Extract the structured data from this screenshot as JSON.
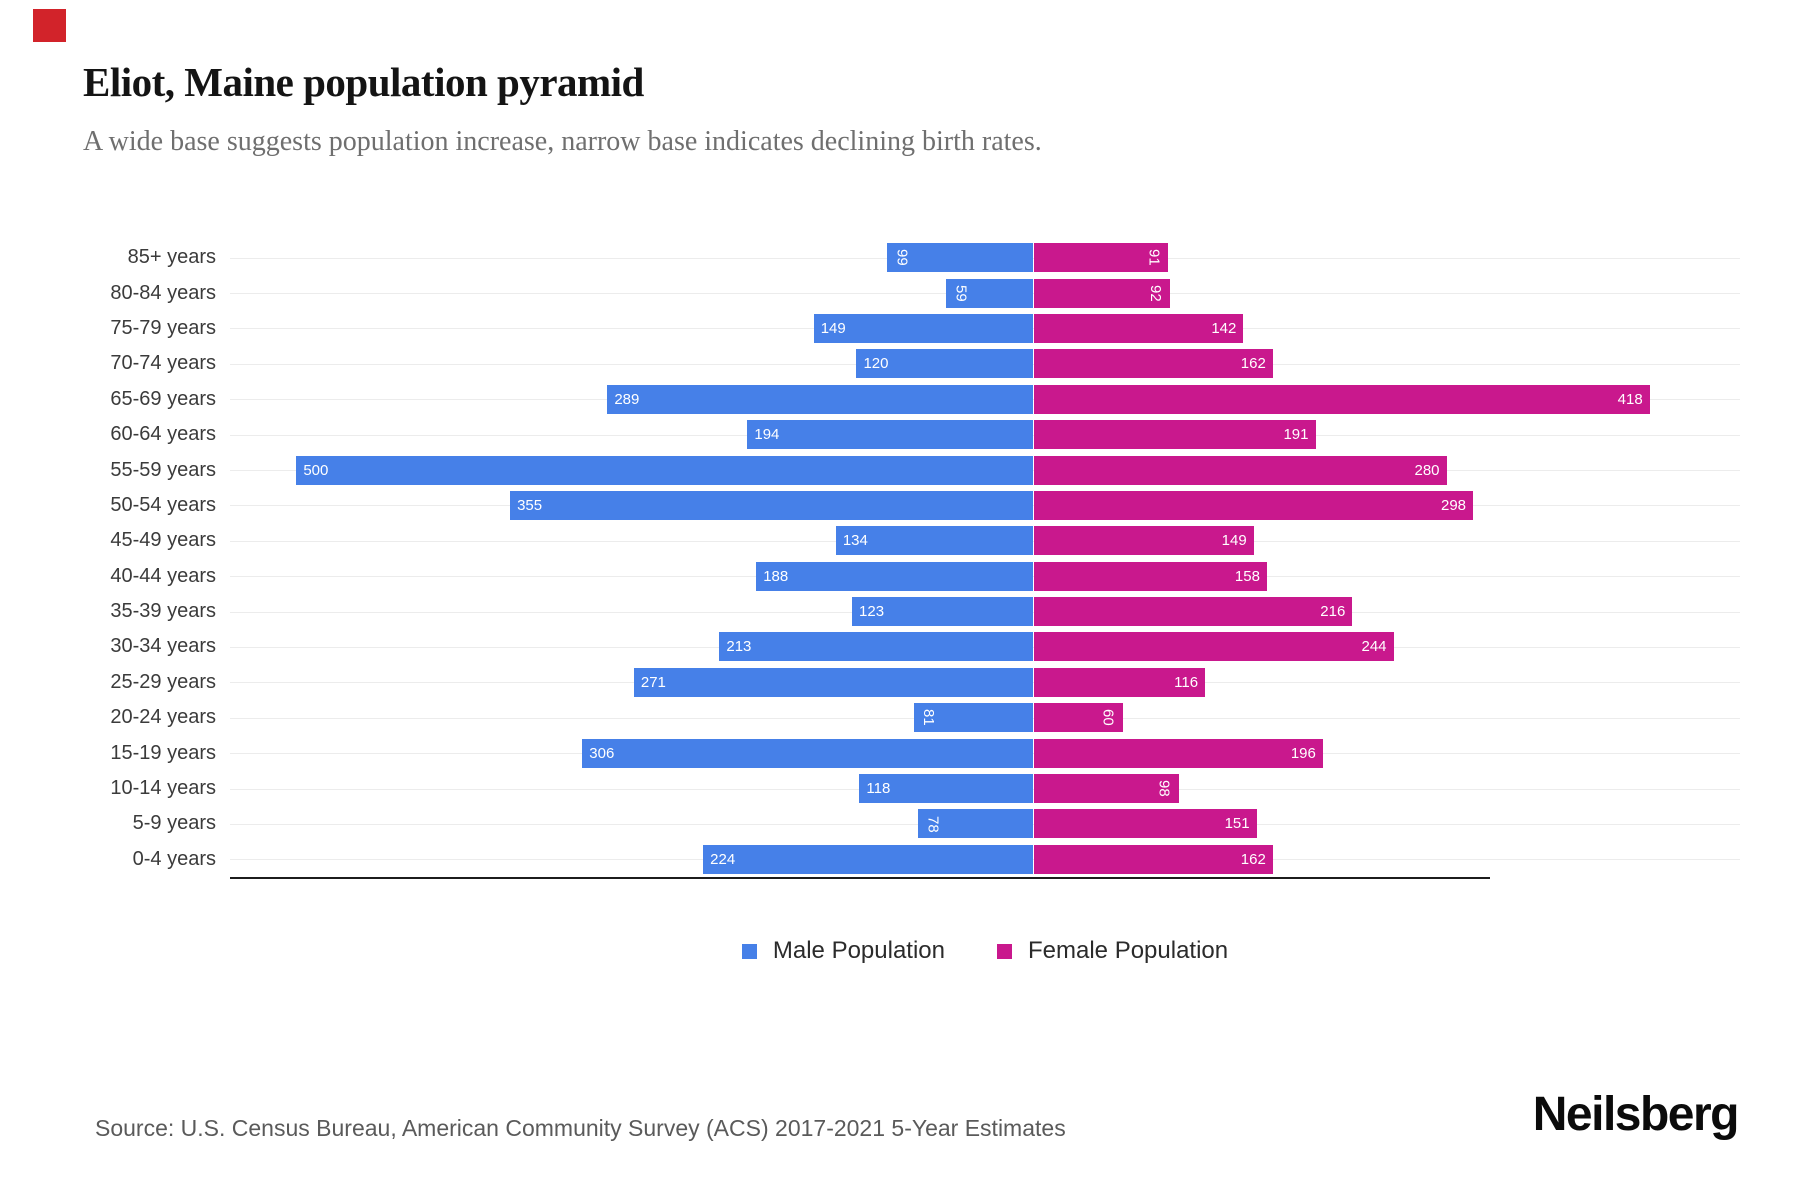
{
  "brand": {
    "logo_text": "Neilsberg",
    "mark_color": "#d2232a"
  },
  "header": {
    "title": "Eliot, Maine population pyramid",
    "subtitle": "A wide base suggests population increase, narrow base indicates declining birth rates."
  },
  "chart_data": {
    "type": "bar",
    "variant": "population-pyramid",
    "title": "Eliot, Maine population pyramid",
    "categories": [
      "85+ years",
      "80-84 years",
      "75-79 years",
      "70-74 years",
      "65-69 years",
      "60-64 years",
      "55-59 years",
      "50-54 years",
      "45-49 years",
      "40-44 years",
      "35-39 years",
      "30-34 years",
      "25-29 years",
      "20-24 years",
      "15-19 years",
      "10-14 years",
      "5-9 years",
      "0-4 years"
    ],
    "series": [
      {
        "name": "Male Population",
        "side": "left",
        "color": "#4680e8",
        "values": [
          99,
          59,
          149,
          120,
          289,
          194,
          500,
          355,
          134,
          188,
          123,
          213,
          271,
          81,
          306,
          118,
          78,
          224
        ]
      },
      {
        "name": "Female Population",
        "side": "right",
        "color": "#c9188d",
        "values": [
          91,
          92,
          142,
          162,
          418,
          191,
          280,
          298,
          149,
          158,
          216,
          244,
          116,
          60,
          196,
          98,
          151,
          162
        ]
      }
    ],
    "value_labels": "inside-outer-end, white, rotated 90deg when value < 110",
    "axis_ranges": {
      "male_axis_max": 545,
      "female_axis_max": 480
    },
    "grid": true,
    "legend_position": "bottom-center"
  },
  "footer": {
    "source": "Source: U.S. Census Bureau, American Community Survey (ACS) 2017-2021 5-Year Estimates"
  }
}
